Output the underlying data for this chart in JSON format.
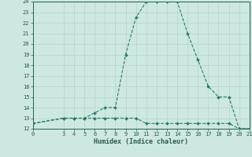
{
  "xlabel": "Humidex (Indice chaleur)",
  "x_line1": [
    0,
    3,
    4,
    5,
    6,
    7,
    8,
    9,
    10,
    11,
    12,
    13,
    14,
    15,
    16,
    17,
    18,
    19,
    20,
    21
  ],
  "y_line1": [
    12.5,
    13,
    13,
    13,
    13.5,
    14,
    14,
    19,
    22.5,
    24,
    24,
    24,
    24,
    21,
    18.5,
    16,
    15,
    15,
    12,
    12
  ],
  "x_line2": [
    0,
    3,
    4,
    5,
    6,
    7,
    8,
    9,
    10,
    11,
    12,
    13,
    14,
    15,
    16,
    17,
    18,
    19,
    20,
    21
  ],
  "y_line2": [
    12.5,
    13,
    13,
    13,
    13,
    13,
    13,
    13,
    13,
    12.5,
    12.5,
    12.5,
    12.5,
    12.5,
    12.5,
    12.5,
    12.5,
    12.5,
    12,
    12
  ],
  "line_color": "#2d7a6a",
  "bg_color": "#cce8e0",
  "grid_color": "#b8d8d0",
  "text_color": "#2d5a50",
  "ylim": [
    12,
    24
  ],
  "xlim": [
    0,
    21
  ],
  "yticks": [
    12,
    13,
    14,
    15,
    16,
    17,
    18,
    19,
    20,
    21,
    22,
    23,
    24
  ],
  "xticks": [
    0,
    3,
    4,
    5,
    6,
    7,
    8,
    9,
    10,
    11,
    12,
    13,
    14,
    15,
    16,
    17,
    18,
    19,
    20,
    21
  ]
}
